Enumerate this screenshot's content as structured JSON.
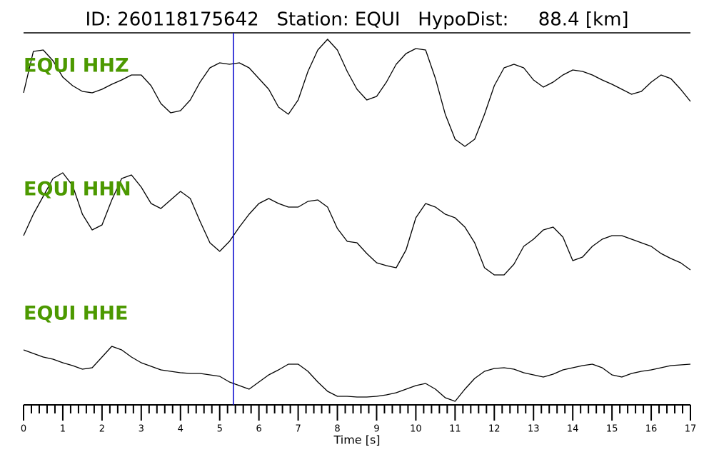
{
  "chart_data": {
    "type": "line",
    "title": "ID: 260118175642   Station: EQUI   HypoDist:     88.4 [km]",
    "xlabel": "Time [s]",
    "xlim": [
      0,
      17
    ],
    "xticks": [
      0,
      1,
      2,
      3,
      4,
      5,
      6,
      7,
      8,
      9,
      10,
      11,
      12,
      13,
      14,
      15,
      16,
      17
    ],
    "xminorticks": [
      0.2,
      0.4,
      0.6,
      0.8,
      1.2,
      1.4,
      1.6,
      1.8,
      2.2,
      2.4,
      2.6,
      2.8,
      3.2,
      3.4,
      3.6,
      3.8,
      4.2,
      4.4,
      4.6,
      4.8,
      5.2,
      5.4,
      5.6,
      5.8,
      6.2,
      6.4,
      6.6,
      6.8,
      7.2,
      7.4,
      7.6,
      7.8,
      8.2,
      8.4,
      8.6,
      8.8,
      9.2,
      9.4,
      9.6,
      9.8,
      10.2,
      10.4,
      10.6,
      10.8,
      11.2,
      11.4,
      11.6,
      11.8,
      12.2,
      12.4,
      12.6,
      12.8,
      13.2,
      13.4,
      13.6,
      13.8,
      14.2,
      14.4,
      14.6,
      14.8,
      15.2,
      15.4,
      15.6,
      15.8,
      16.2,
      16.4,
      16.6,
      16.8
    ],
    "label_color": "#4c9900",
    "pick": {
      "x": 5.35,
      "color": "#0000cc"
    },
    "x": [
      0,
      0.25,
      0.5,
      0.75,
      1,
      1.25,
      1.5,
      1.75,
      2,
      2.25,
      2.5,
      2.75,
      3,
      3.25,
      3.5,
      3.75,
      4,
      4.25,
      4.5,
      4.75,
      5,
      5.25,
      5.5,
      5.75,
      6,
      6.25,
      6.5,
      6.75,
      7,
      7.25,
      7.5,
      7.75,
      8,
      8.25,
      8.5,
      8.75,
      9,
      9.25,
      9.5,
      9.75,
      10,
      10.25,
      10.5,
      10.75,
      11,
      11.25,
      11.5,
      11.75,
      12,
      12.25,
      12.5,
      12.75,
      13,
      13.25,
      13.5,
      13.75,
      14,
      14.25,
      14.5,
      14.75,
      15,
      15.25,
      15.5,
      15.75,
      16,
      16.25,
      16.5,
      16.75,
      17
    ],
    "series": [
      {
        "name": "EQUI HHZ",
        "color": "#000000",
        "values": [
          -1,
          4.8,
          5,
          3.5,
          1.2,
          0,
          -0.8,
          -1,
          -0.5,
          0.2,
          0.8,
          1.5,
          1.5,
          0,
          -2.5,
          -3.8,
          -3.5,
          -2,
          0.5,
          2.5,
          3.2,
          3,
          3.2,
          2.5,
          1,
          -0.5,
          -3,
          -4,
          -2,
          2,
          5,
          6.5,
          5,
          2,
          -0.5,
          -2,
          -1.5,
          0.5,
          3,
          4.5,
          5.2,
          5,
          1,
          -4,
          -7.5,
          -8.5,
          -7.5,
          -4,
          0,
          2.5,
          3,
          2.5,
          0.8,
          -0.2,
          0.5,
          1.5,
          2.2,
          2,
          1.5,
          0.8,
          0.2,
          -0.5,
          -1.2,
          -0.8,
          0.5,
          1.5,
          1,
          -0.5,
          -2.2
        ]
      },
      {
        "name": "EQUI HHN",
        "color": "#000000",
        "values": [
          -2,
          1,
          3.5,
          6,
          6.8,
          5,
          1,
          -1.2,
          -0.5,
          3,
          6,
          6.5,
          4.8,
          2.5,
          1.8,
          3,
          4.2,
          3.2,
          0,
          -3,
          -4.2,
          -2.8,
          -0.8,
          1,
          2.5,
          3.2,
          2.5,
          2,
          2,
          2.8,
          3,
          2,
          -1,
          -2.8,
          -3,
          -4.5,
          -5.8,
          -6.2,
          -6.5,
          -4,
          0.5,
          2.5,
          2,
          1,
          0.5,
          -0.8,
          -3,
          -6.5,
          -7.5,
          -7.5,
          -6,
          -3.5,
          -2.5,
          -1.2,
          -0.8,
          -2.2,
          -5.5,
          -5,
          -3.5,
          -2.5,
          -2,
          -2,
          -2.5,
          -3,
          -3.5,
          -4.5,
          -5.2,
          -5.8,
          -6.8
        ]
      },
      {
        "name": "EQUI HHE",
        "color": "#000000",
        "values": [
          3,
          2.5,
          2,
          1.7,
          1.2,
          0.8,
          0.3,
          0.5,
          2,
          3.5,
          3,
          2,
          1.2,
          0.7,
          0.2,
          0,
          -0.2,
          -0.3,
          -0.3,
          -0.5,
          -0.7,
          -1.5,
          -2,
          -2.5,
          -1.5,
          -0.5,
          0.2,
          1,
          1,
          0,
          -1.5,
          -2.8,
          -3.5,
          -3.5,
          -3.6,
          -3.6,
          -3.5,
          -3.3,
          -3,
          -2.5,
          -2,
          -1.7,
          -2.5,
          -3.7,
          -4.2,
          -2.5,
          -1,
          0,
          0.4,
          0.5,
          0.3,
          -0.2,
          -0.5,
          -0.8,
          -0.4,
          0.2,
          0.5,
          0.8,
          1,
          0.5,
          -0.5,
          -0.8,
          -0.3,
          0,
          0.2,
          0.5,
          0.8,
          0.9,
          1
        ]
      }
    ]
  }
}
